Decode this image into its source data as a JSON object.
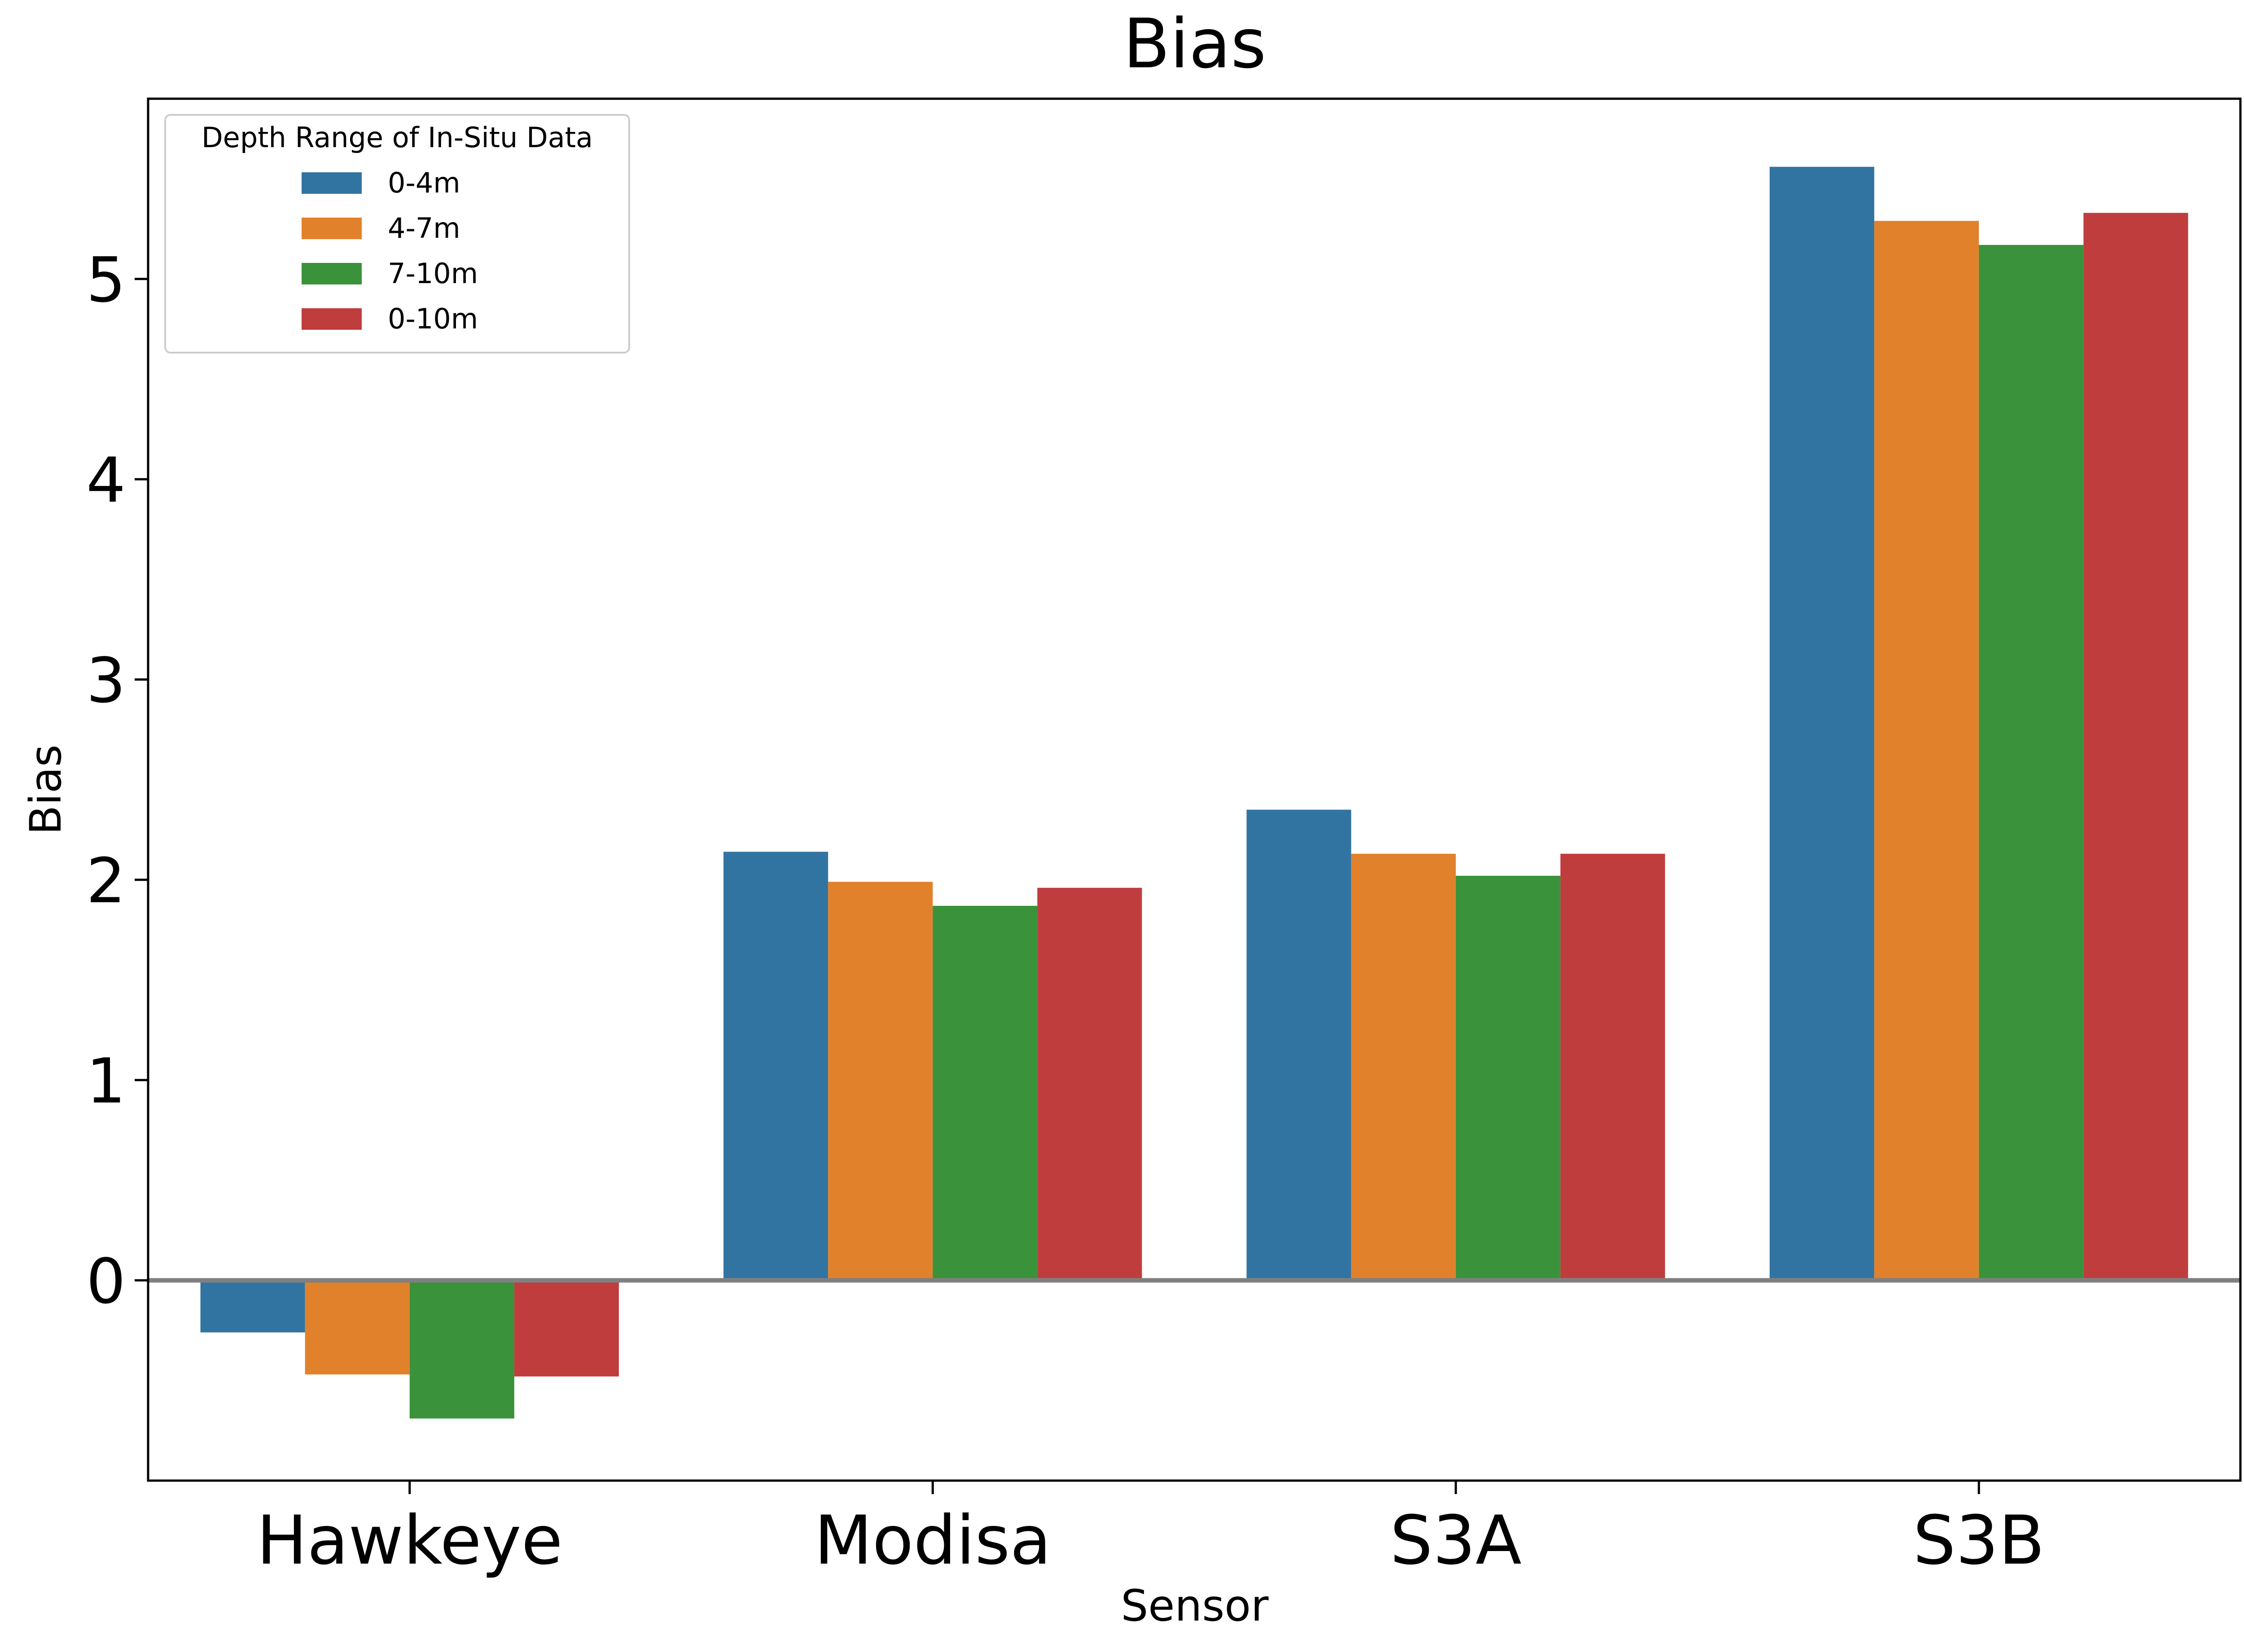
{
  "chart_data": {
    "type": "bar",
    "title": "Bias",
    "xlabel": "Sensor",
    "ylabel": "Bias",
    "categories": [
      "Hawkeye",
      "Modisa",
      "S3A",
      "S3B"
    ],
    "series": [
      {
        "name": "0-4m",
        "color": "#3274a1",
        "values": [
          -0.26,
          2.14,
          2.35,
          5.56
        ]
      },
      {
        "name": "4-7m",
        "color": "#e1812c",
        "values": [
          -0.47,
          1.99,
          2.13,
          5.29
        ]
      },
      {
        "name": "7-10m",
        "color": "#3a923a",
        "values": [
          -0.69,
          1.87,
          2.02,
          5.17
        ]
      },
      {
        "name": "0-10m",
        "color": "#c03d3e",
        "values": [
          -0.48,
          1.96,
          2.13,
          5.33
        ]
      }
    ],
    "ylim": [
      -1.0,
      5.9
    ],
    "yticks": [
      0,
      1,
      2,
      3,
      4,
      5
    ],
    "grid": false,
    "zero_line": true,
    "legend": {
      "title": "Depth Range of In-Situ Data",
      "placement": "top-left"
    }
  }
}
